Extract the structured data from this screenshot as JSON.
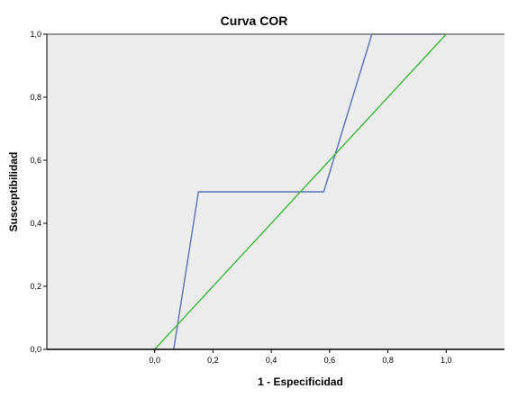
{
  "chart_data": {
    "type": "line",
    "title": "Curva COR",
    "xlabel": "1 - Especificidad",
    "ylabel": "Susceptibilidad",
    "xlim": [
      -0.37,
      1.2
    ],
    "ylim": [
      0.0,
      1.0
    ],
    "x_ticks": [
      0.0,
      0.2,
      0.4,
      0.6,
      0.8,
      1.0
    ],
    "x_tick_labels": [
      "0,0",
      "0,2",
      "0,4",
      "0,6",
      "0,8",
      "1,0"
    ],
    "y_ticks": [
      0.0,
      0.2,
      0.4,
      0.6,
      0.8,
      1.0
    ],
    "y_tick_labels": [
      "0,0",
      "0,2",
      "0,4",
      "0,6",
      "0,8",
      "1,0"
    ],
    "grid": false,
    "legend": "none",
    "plot_background": "#ececec",
    "series": [
      {
        "color": "#5b6fb8",
        "x": [
          0.065,
          0.15,
          0.58,
          0.745,
          1.0
        ],
        "y": [
          0.0,
          0.5,
          0.5,
          1.0,
          1.0
        ]
      },
      {
        "color": "#3cb83c",
        "x": [
          0.0,
          1.0
        ],
        "y": [
          0.0,
          1.0
        ]
      }
    ]
  }
}
